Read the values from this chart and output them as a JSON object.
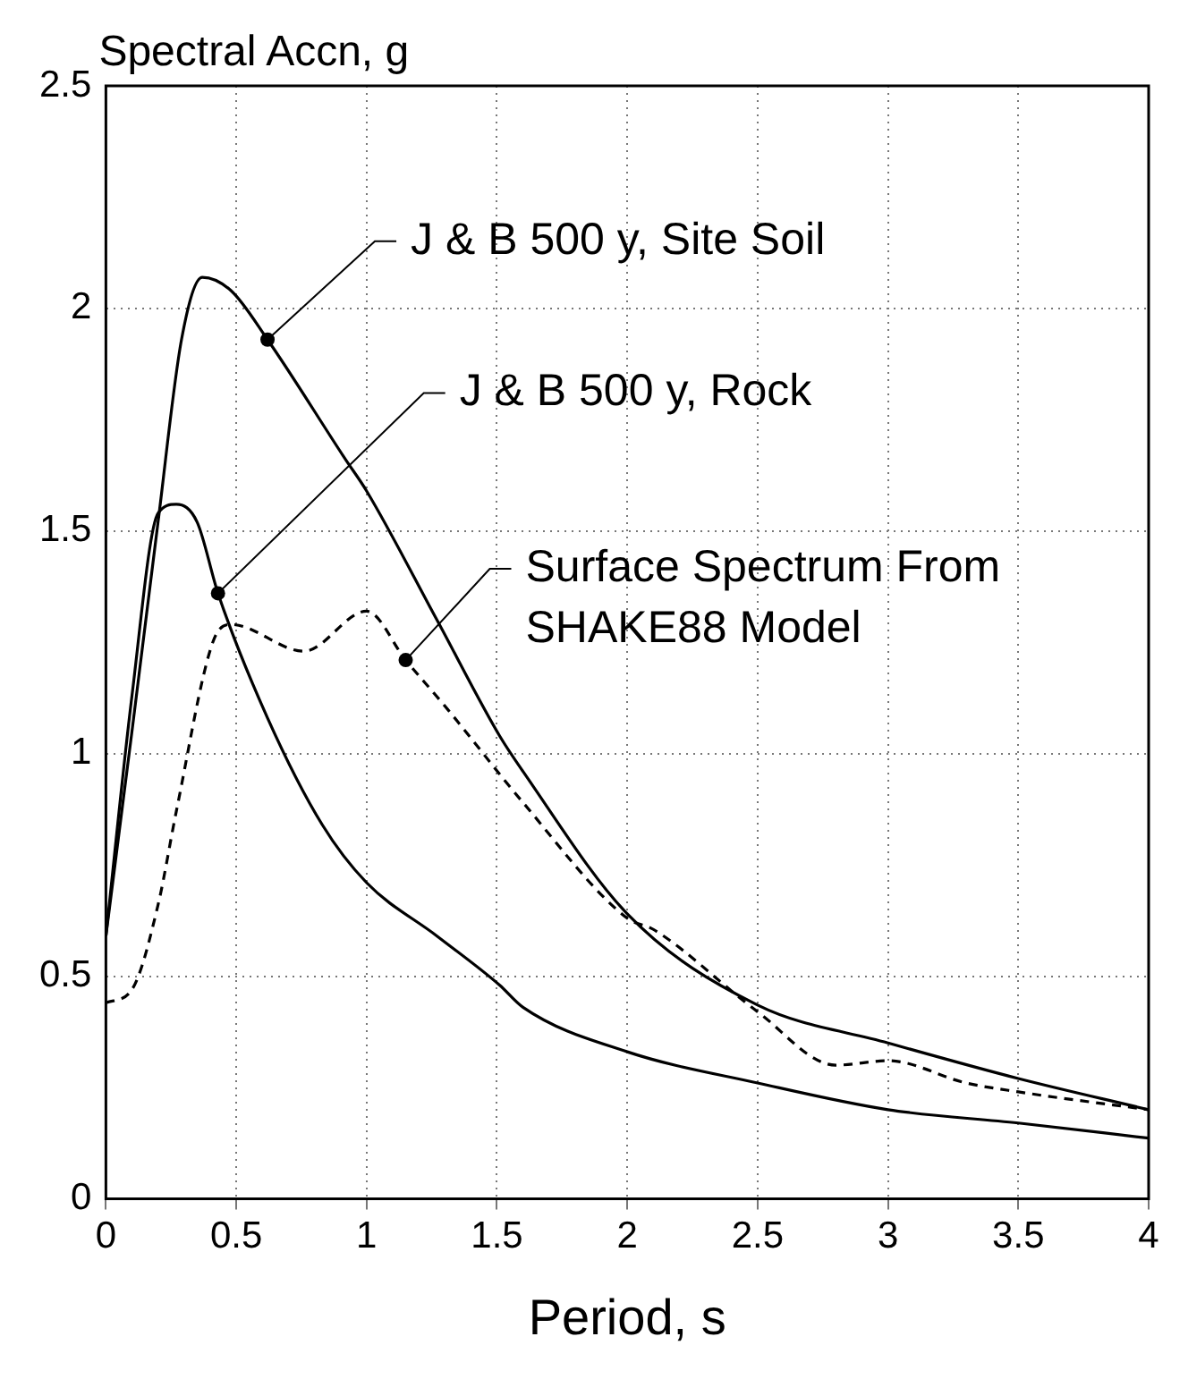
{
  "chart_data": {
    "type": "line",
    "ylabel": "Spectral Accn, g",
    "xlabel": "Period, s",
    "xlim": [
      0,
      4
    ],
    "ylim": [
      0,
      2.5
    ],
    "xticks": [
      0,
      0.5,
      1,
      1.5,
      2,
      2.5,
      3,
      3.5,
      4
    ],
    "yticks": [
      0,
      0.5,
      1,
      1.5,
      2,
      2.5
    ],
    "grid": true,
    "legend": false,
    "marker": "none",
    "series": [
      {
        "color": "#000000",
        "line_style": "solid",
        "x": [
          0,
          0.1,
          0.2,
          0.29,
          0.37,
          0.48,
          0.62,
          0.92,
          1.0,
          1.27,
          1.51,
          1.6,
          2,
          2.5,
          3,
          3.5,
          4
        ],
        "values": [
          0.59,
          1.05,
          1.52,
          1.93,
          2.07,
          2.04,
          1.93,
          1.66,
          1.59,
          1.3,
          1.04,
          0.96,
          0.64,
          0.435,
          0.35,
          0.27,
          0.2
        ]
      },
      {
        "color": "#000000",
        "line_style": "solid",
        "x": [
          0,
          0.1,
          0.2,
          0.27,
          0.35,
          0.43,
          0.62,
          0.83,
          1.0,
          1.27,
          1.51,
          1.6,
          2,
          2.5,
          3,
          3.5,
          4
        ],
        "values": [
          0.59,
          1.13,
          1.54,
          1.56,
          1.52,
          1.36,
          1.08,
          0.84,
          0.71,
          0.59,
          0.48,
          0.43,
          0.33,
          0.26,
          0.2,
          0.17,
          0.136
        ]
      },
      {
        "color": "#000000",
        "line_style": "dashed",
        "x": [
          0,
          0.1,
          0.2,
          0.27,
          0.41,
          0.48,
          0.76,
          1.0,
          1.15,
          1.31,
          1.6,
          2,
          2.1,
          2.5,
          2.8,
          3,
          3.3,
          3.5,
          4
        ],
        "values": [
          0.44,
          0.47,
          0.66,
          0.87,
          1.25,
          1.29,
          1.23,
          1.32,
          1.21,
          1.1,
          0.89,
          0.63,
          0.605,
          0.42,
          0.3,
          0.31,
          0.26,
          0.24,
          0.2
        ]
      }
    ],
    "annotations": [
      {
        "text": "J & B 500 y, Site Soil",
        "x": 0.62,
        "y": 1.93
      },
      {
        "text": "J & B 500 y, Rock",
        "x": 0.43,
        "y": 1.36
      },
      {
        "text": "Surface Spectrum From\nSHAKE88 Model",
        "x": 1.15,
        "y": 1.21
      }
    ]
  }
}
